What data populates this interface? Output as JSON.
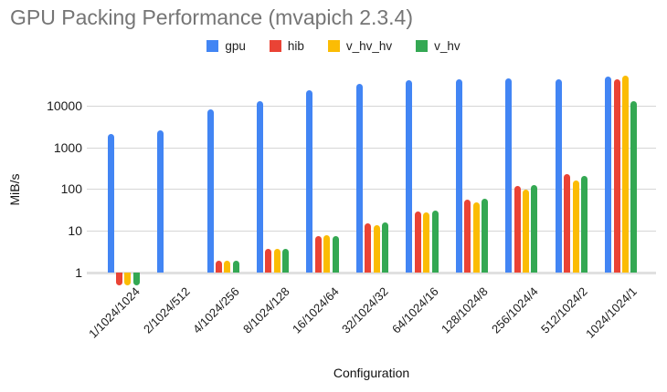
{
  "chart_data": {
    "type": "bar",
    "title": "GPU Packing Performance (mvapich 2.3.4)",
    "xlabel": "Configuration",
    "ylabel": "MiB/s",
    "y_scale": "log",
    "y_ticks": [
      1,
      10,
      100,
      1000,
      10000
    ],
    "ylim": [
      0.45,
      55000
    ],
    "grid": true,
    "legend_position": "top",
    "categories": [
      "1/1024/1024",
      "2/1024/512",
      "4/1024/256",
      "8/1024/128",
      "16/1024/64",
      "32/1024/32",
      "64/1024/16",
      "128/1024/8",
      "256/1024/4",
      "512/1024/2",
      "1024/1024/1"
    ],
    "series": [
      {
        "name": "gpu",
        "color": "#4285F4",
        "values": [
          2100,
          2600,
          8000,
          12500,
          23000,
          33000,
          40000,
          42000,
          45000,
          43000,
          49000
        ]
      },
      {
        "name": "hib",
        "color": "#EA4335",
        "values": [
          0.5,
          null,
          1.9,
          3.7,
          7.4,
          15,
          29,
          57,
          118,
          230,
          42000
        ]
      },
      {
        "name": "v_hv_hv",
        "color": "#FBBC04",
        "values": [
          0.5,
          null,
          1.9,
          3.7,
          7.7,
          14,
          28,
          49,
          97,
          157,
          52000
        ]
      },
      {
        "name": "v_hv",
        "color": "#34A853",
        "values": [
          0.5,
          null,
          1.9,
          3.7,
          7.4,
          15.5,
          31,
          60,
          122,
          205,
          13000
        ]
      }
    ]
  },
  "colors": {
    "title_text": "#757575",
    "axis_text": "#1a1a1a",
    "gridline": "#d6d6d6",
    "baseline": "#e0e0e0",
    "background": "#ffffff"
  }
}
